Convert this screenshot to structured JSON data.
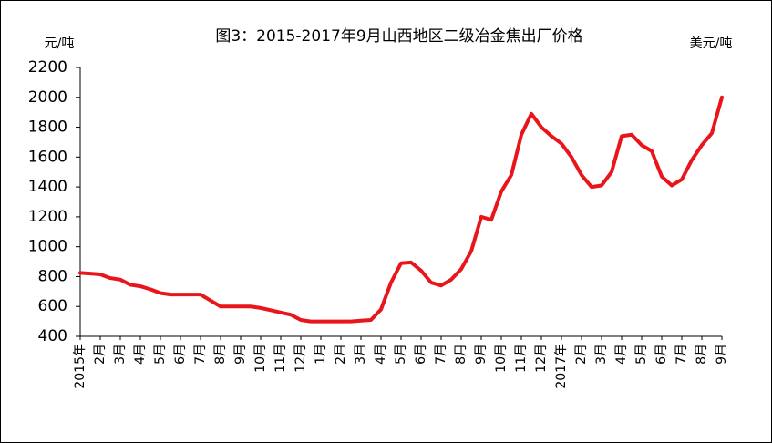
{
  "chart_data": {
    "type": "line",
    "title": "图3：2015-2017年9月山西地区二级冶金焦出厂价格",
    "y_label": "元/吨",
    "y2_label": "美元/吨",
    "categories": [
      "2015年",
      null,
      "2月",
      null,
      "3月",
      null,
      "4月",
      null,
      "5月",
      null,
      "6月",
      null,
      "7月",
      null,
      "8月",
      null,
      "9月",
      null,
      "10月",
      null,
      "11月",
      null,
      "12月",
      null,
      "1月",
      null,
      "2月",
      null,
      "3月",
      null,
      "4月",
      null,
      "5月",
      null,
      "6月",
      null,
      "7月",
      null,
      "8月",
      null,
      "9月",
      null,
      "10月",
      null,
      "11月",
      null,
      "12月",
      null,
      "2017年",
      null,
      "2月",
      null,
      "3月",
      null,
      "4月",
      null,
      "5月",
      null,
      "6月",
      null,
      "7月",
      null,
      "8月",
      null,
      "9月"
    ],
    "series": [
      {
        "name": "二级冶金焦出厂价格",
        "color": "#e8161b",
        "values": [
          825,
          820,
          815,
          790,
          780,
          745,
          735,
          715,
          690,
          680,
          680,
          680,
          680,
          640,
          600,
          600,
          600,
          600,
          590,
          575,
          560,
          545,
          510,
          500,
          500,
          500,
          500,
          500,
          505,
          510,
          580,
          760,
          890,
          895,
          840,
          760,
          740,
          780,
          850,
          970,
          1200,
          1180,
          1370,
          1480,
          1750,
          1890,
          1800,
          1740,
          1690,
          1600,
          1480,
          1400,
          1410,
          1500,
          1740,
          1750,
          1680,
          1640,
          1470,
          1410,
          1450,
          1580,
          1680,
          1760,
          2000
        ]
      }
    ],
    "ylim": [
      400,
      2200
    ],
    "yticks": [
      400,
      600,
      800,
      1000,
      1200,
      1400,
      1600,
      1800,
      2000,
      2200
    ],
    "grid": false
  }
}
